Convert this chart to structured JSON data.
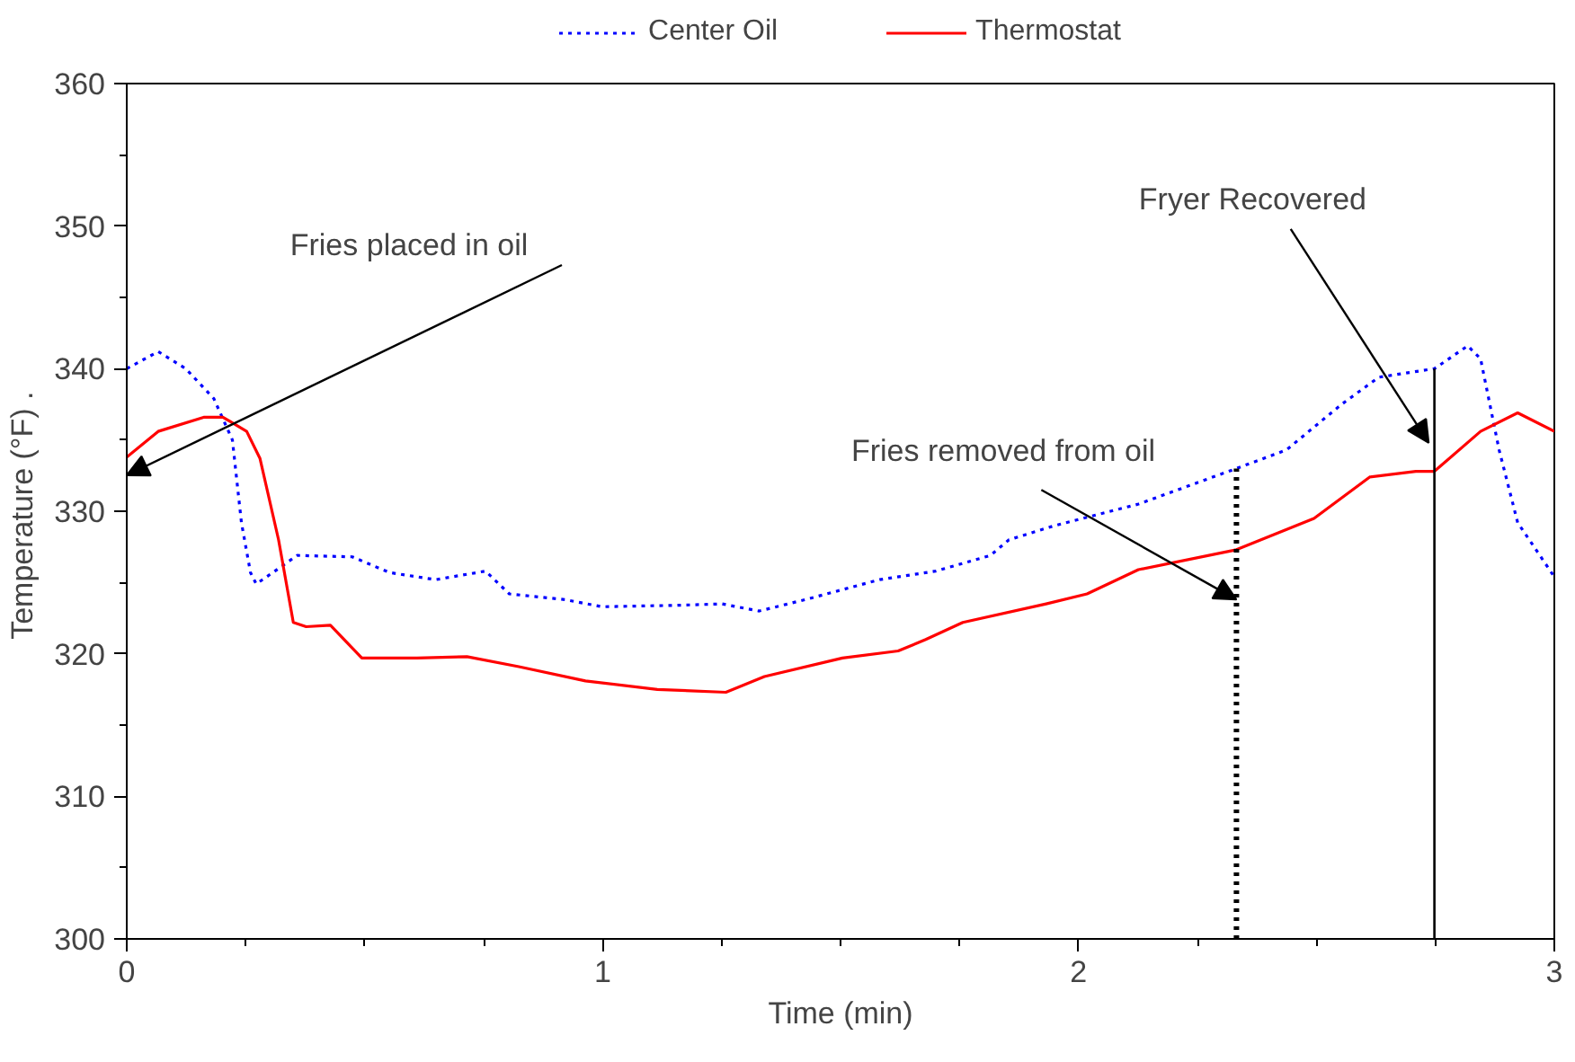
{
  "chart_data": {
    "type": "line",
    "xlabel": "Time (min)",
    "ylabel": "Temperature (°F)  .",
    "xlim": [
      0,
      3
    ],
    "ylim": [
      300,
      360
    ],
    "xticks": [
      0,
      1,
      2,
      3
    ],
    "yticks": [
      300,
      310,
      320,
      330,
      340,
      350,
      360
    ],
    "grid": false,
    "legend": "top",
    "marker": "none",
    "series": [
      {
        "name": "Center Oil",
        "color": "#0000ff",
        "line_style": "dotted",
        "x": [
          0,
          0.066,
          0.124,
          0.183,
          0.222,
          0.241,
          0.26,
          0.272,
          0.307,
          0.358,
          0.474,
          0.552,
          0.649,
          0.754,
          0.804,
          0.921,
          0.999,
          1.154,
          1.251,
          1.329,
          1.426,
          1.582,
          1.7,
          1.815,
          1.854,
          1.951,
          2.126,
          2.332,
          2.437,
          2.553,
          2.631,
          2.748,
          2.818,
          2.845,
          2.884,
          2.923,
          3.0
        ],
        "values": [
          340.0,
          341.2,
          340.0,
          337.9,
          335.0,
          329.2,
          325.7,
          324.9,
          325.7,
          326.9,
          326.8,
          325.7,
          325.2,
          325.8,
          324.2,
          323.8,
          323.3,
          323.4,
          323.5,
          323.0,
          323.8,
          325.2,
          325.8,
          326.9,
          328.0,
          329.0,
          330.5,
          333.0,
          334.3,
          337.5,
          339.4,
          340.0,
          341.6,
          340.7,
          334.3,
          329.2,
          325.4
        ]
      },
      {
        "name": "Thermostat",
        "color": "#ff0000",
        "line_style": "solid",
        "x": [
          0,
          0.066,
          0.163,
          0.202,
          0.252,
          0.28,
          0.319,
          0.35,
          0.377,
          0.428,
          0.494,
          0.61,
          0.715,
          0.824,
          0.964,
          1.115,
          1.259,
          1.34,
          1.504,
          1.621,
          1.679,
          1.757,
          1.932,
          2.018,
          2.126,
          2.332,
          2.495,
          2.612,
          2.709,
          2.748,
          2.845,
          2.923,
          3.0
        ],
        "values": [
          333.8,
          335.6,
          336.6,
          336.6,
          335.6,
          333.7,
          328.0,
          322.2,
          321.9,
          322.0,
          319.7,
          319.7,
          319.8,
          319.1,
          318.1,
          317.5,
          317.3,
          318.4,
          319.7,
          320.2,
          321.0,
          322.2,
          323.5,
          324.2,
          325.9,
          327.3,
          329.5,
          332.4,
          332.8,
          332.8,
          335.6,
          336.9,
          335.6
        ]
      }
    ],
    "ref_lines": [
      {
        "axis": "x",
        "value": 2.332,
        "line_style": "dotted",
        "color": "#000000"
      },
      {
        "axis": "x",
        "value": 2.748,
        "line_style": "solid",
        "color": "#000000"
      }
    ],
    "annotations": [
      "Fries placed in oil",
      {
        "text": "Fries removed from oil",
        "x": 2.332,
        "y": 323.8
      },
      {
        "text": "Fryer Recovered",
        "x": 2.736,
        "y": 334.8
      }
    ]
  }
}
